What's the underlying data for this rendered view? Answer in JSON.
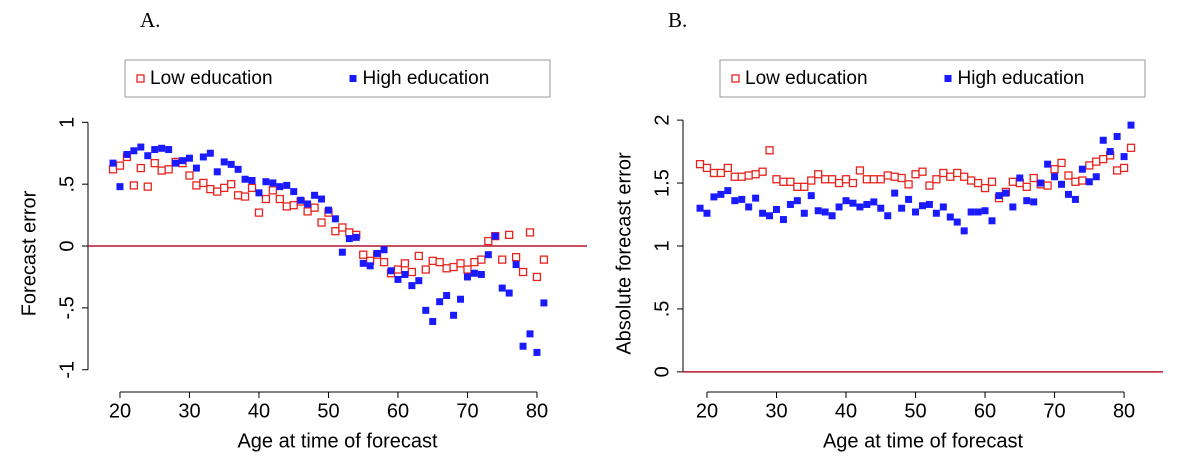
{
  "chart_data": [
    {
      "type": "scatter",
      "title": "A.",
      "x_label": "Age at time of forecast",
      "y_label": "Forecast error",
      "x": [
        19,
        20,
        21,
        22,
        23,
        24,
        25,
        26,
        27,
        28,
        29,
        30,
        31,
        32,
        33,
        34,
        35,
        36,
        37,
        38,
        39,
        40,
        41,
        42,
        43,
        44,
        45,
        46,
        47,
        48,
        49,
        50,
        51,
        52,
        53,
        54,
        55,
        56,
        57,
        58,
        59,
        60,
        61,
        62,
        63,
        64,
        65,
        66,
        67,
        68,
        69,
        70,
        71,
        72,
        73,
        74,
        75,
        76,
        77,
        78,
        79,
        80,
        81
      ],
      "series": [
        {
          "name": "Low education",
          "color": "#e8221c",
          "marker": "hollow-square",
          "values": [
            0.62,
            0.65,
            0.72,
            0.49,
            0.63,
            0.48,
            0.67,
            0.61,
            0.62,
            0.68,
            0.67,
            0.57,
            0.49,
            0.51,
            0.46,
            0.44,
            0.47,
            0.5,
            0.41,
            0.4,
            0.47,
            0.27,
            0.38,
            0.45,
            0.38,
            0.32,
            0.33,
            0.36,
            0.28,
            0.31,
            0.19,
            0.27,
            0.12,
            0.15,
            0.11,
            0.09,
            -0.07,
            -0.12,
            -0.07,
            -0.13,
            -0.22,
            -0.19,
            -0.14,
            -0.21,
            -0.08,
            -0.19,
            -0.12,
            -0.13,
            -0.18,
            -0.17,
            -0.14,
            -0.19,
            -0.13,
            -0.11,
            0.04,
            0.08,
            -0.11,
            0.09,
            -0.09,
            -0.21,
            0.11,
            -0.25,
            -0.11
          ]
        },
        {
          "name": "High education",
          "color": "#1a1aff",
          "marker": "filled-square",
          "values": [
            0.67,
            0.48,
            0.74,
            0.77,
            0.8,
            0.73,
            0.78,
            0.79,
            0.78,
            0.67,
            0.69,
            0.71,
            0.63,
            0.72,
            0.75,
            0.6,
            0.68,
            0.66,
            0.62,
            0.54,
            0.53,
            0.43,
            0.52,
            0.51,
            0.48,
            0.49,
            0.44,
            0.37,
            0.34,
            0.41,
            0.38,
            0.29,
            0.22,
            -0.05,
            0.06,
            0.07,
            -0.14,
            -0.16,
            -0.06,
            -0.03,
            -0.2,
            -0.27,
            -0.23,
            -0.32,
            -0.28,
            -0.52,
            -0.61,
            -0.45,
            -0.4,
            -0.56,
            -0.43,
            -0.25,
            -0.22,
            -0.23,
            -0.07,
            0.08,
            -0.34,
            -0.38,
            -0.15,
            -0.81,
            -0.71,
            -0.86,
            -0.46
          ]
        }
      ],
      "xlim": [
        15.4,
        87.2
      ],
      "xticks": [
        20,
        30,
        40,
        50,
        60,
        70,
        80
      ],
      "ylim": [
        -1.18,
        1.14
      ],
      "yticks": [
        {
          "value": -1,
          "label": "-1"
        },
        {
          "value": -0.5,
          "label": "-.5"
        },
        0,
        {
          "value": 0.5,
          "label": ".5"
        },
        1
      ],
      "reference_line": 0,
      "reference_color": "#b5172f",
      "legend": "top"
    },
    {
      "type": "scatter",
      "title": "B.",
      "x_label": "Age at time of forecast",
      "y_label": "Absolute forecast error",
      "x": [
        19,
        20,
        21,
        22,
        23,
        24,
        25,
        26,
        27,
        28,
        29,
        30,
        31,
        32,
        33,
        34,
        35,
        36,
        37,
        38,
        39,
        40,
        41,
        42,
        43,
        44,
        45,
        46,
        47,
        48,
        49,
        50,
        51,
        52,
        53,
        54,
        55,
        56,
        57,
        58,
        59,
        60,
        61,
        62,
        63,
        64,
        65,
        66,
        67,
        68,
        69,
        70,
        71,
        72,
        73,
        74,
        75,
        76,
        77,
        78,
        79,
        80,
        81
      ],
      "series": [
        {
          "name": "Low education",
          "color": "#e8221c",
          "marker": "hollow-square",
          "values": [
            1.65,
            1.62,
            1.58,
            1.58,
            1.62,
            1.55,
            1.55,
            1.56,
            1.57,
            1.59,
            1.76,
            1.53,
            1.51,
            1.51,
            1.47,
            1.47,
            1.52,
            1.57,
            1.53,
            1.53,
            1.5,
            1.53,
            1.5,
            1.6,
            1.53,
            1.53,
            1.53,
            1.56,
            1.55,
            1.54,
            1.49,
            1.57,
            1.59,
            1.48,
            1.53,
            1.58,
            1.55,
            1.58,
            1.55,
            1.52,
            1.5,
            1.46,
            1.51,
            1.38,
            1.43,
            1.51,
            1.5,
            1.47,
            1.54,
            1.49,
            1.48,
            1.61,
            1.66,
            1.56,
            1.51,
            1.52,
            1.64,
            1.67,
            1.69,
            1.72,
            1.6,
            1.62,
            1.78
          ]
        },
        {
          "name": "High education",
          "color": "#1a1aff",
          "marker": "filled-square",
          "values": [
            1.3,
            1.26,
            1.39,
            1.41,
            1.44,
            1.36,
            1.37,
            1.31,
            1.38,
            1.26,
            1.24,
            1.29,
            1.21,
            1.33,
            1.36,
            1.26,
            1.4,
            1.28,
            1.27,
            1.24,
            1.31,
            1.36,
            1.34,
            1.31,
            1.33,
            1.35,
            1.3,
            1.24,
            1.42,
            1.3,
            1.37,
            1.27,
            1.32,
            1.33,
            1.26,
            1.31,
            1.23,
            1.19,
            1.12,
            1.27,
            1.27,
            1.28,
            1.2,
            1.4,
            1.42,
            1.31,
            1.54,
            1.36,
            1.35,
            1.5,
            1.65,
            1.55,
            1.49,
            1.41,
            1.37,
            1.61,
            1.51,
            1.55,
            1.84,
            1.75,
            1.87,
            1.71,
            1.96
          ]
        }
      ],
      "xlim": [
        16.55,
        85.6
      ],
      "xticks": [
        20,
        30,
        40,
        50,
        60,
        70,
        80
      ],
      "ylim": [
        -0.16,
        2.12
      ],
      "yticks": [
        0,
        {
          "value": 0.5,
          "label": ".5"
        },
        1,
        {
          "value": 1.5,
          "label": "1.5"
        },
        2
      ],
      "reference_line": 0,
      "reference_color": "#b5172f",
      "legend": "top"
    }
  ]
}
